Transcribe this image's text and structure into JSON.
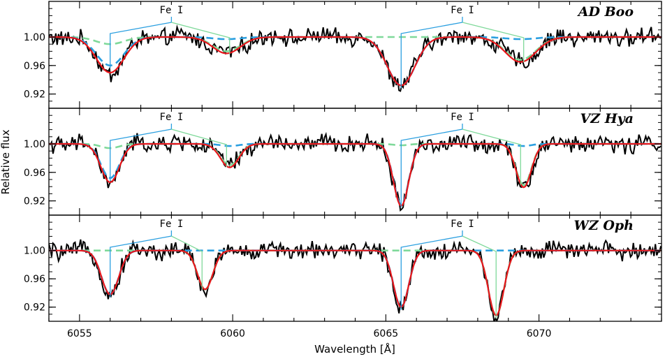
{
  "chart_data": {
    "type": "line",
    "xlabel": "Wavelength [Å]",
    "ylabel": "Relative flux",
    "xlim": [
      6054.0,
      6074.0
    ],
    "ylim": [
      0.9,
      1.05
    ],
    "x_ticks": [
      6055,
      6060,
      6065,
      6070
    ],
    "x_tick_labels": [
      "6055",
      "6060",
      "6065",
      "6070"
    ],
    "y_ticks": [
      0.92,
      0.96,
      1.0
    ],
    "y_tick_labels": [
      "0.92",
      "0.96",
      "1.00"
    ],
    "grid": false,
    "colors": {
      "observed": "#000000",
      "fit": "#e8161b",
      "primary": "#2a9fe0",
      "secondary": "#7fd99a"
    },
    "panels": [
      {
        "star": "AD Boo",
        "line_label_1": "Fe I",
        "line_label_2": "Fe I",
        "fe_marks": [
          {
            "top": 6058.0,
            "primary": 6056.0,
            "secondary": 6059.9
          },
          {
            "top": 6067.5,
            "primary": 6065.5,
            "secondary": 6069.5
          }
        ],
        "absorption_lines": [
          {
            "center": 6056.0,
            "primary_depth": 0.04,
            "secondary_depth": 0.01,
            "width": 0.45
          },
          {
            "center": 6059.8,
            "primary_depth": 0.003,
            "secondary_depth": 0.02,
            "width": 0.45
          },
          {
            "center": 6065.5,
            "primary_depth": 0.068,
            "secondary_depth": 0.0,
            "width": 0.45
          },
          {
            "center": 6069.4,
            "primary_depth": 0.003,
            "secondary_depth": 0.032,
            "width": 0.5
          }
        ],
        "shift": 0.35
      },
      {
        "star": "VZ Hya",
        "line_label_1": "Fe I",
        "line_label_2": "Fe I",
        "fe_marks": [
          {
            "top": 6058.0,
            "primary": 6056.0,
            "secondary": 6059.8
          },
          {
            "top": 6067.5,
            "primary": 6065.5,
            "secondary": 6069.4
          }
        ],
        "absorption_lines": [
          {
            "center": 6056.0,
            "primary_depth": 0.048,
            "secondary_depth": 0.006,
            "width": 0.3
          },
          {
            "center": 6059.9,
            "primary_depth": 0.003,
            "secondary_depth": 0.03,
            "width": 0.3
          },
          {
            "center": 6065.5,
            "primary_depth": 0.085,
            "secondary_depth": 0.002,
            "width": 0.25
          },
          {
            "center": 6069.5,
            "primary_depth": 0.003,
            "secondary_depth": 0.058,
            "width": 0.25
          }
        ],
        "shift": 0.3
      },
      {
        "star": "WZ Oph",
        "line_label_1": "Fe I",
        "line_label_2": "Fe I",
        "fe_marks": [
          {
            "top": 6058.0,
            "primary": 6056.0,
            "secondary": 6059.0
          },
          {
            "top": 6067.5,
            "primary": 6065.5,
            "secondary": 6068.6
          }
        ],
        "absorption_lines": [
          {
            "center": 6056.0,
            "primary_depth": 0.062,
            "secondary_depth": 0.0,
            "width": 0.28
          },
          {
            "center": 6059.1,
            "primary_depth": 0.0,
            "secondary_depth": 0.055,
            "width": 0.25
          },
          {
            "center": 6065.5,
            "primary_depth": 0.08,
            "secondary_depth": 0.0,
            "width": 0.25
          },
          {
            "center": 6068.6,
            "primary_depth": 0.0,
            "secondary_depth": 0.092,
            "width": 0.25
          }
        ],
        "shift": 0.45
      }
    ]
  }
}
